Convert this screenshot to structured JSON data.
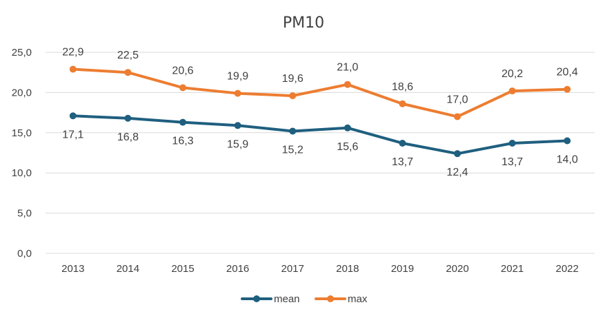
{
  "chart_data": {
    "type": "line",
    "title": "PM10",
    "xlabel": "",
    "ylabel": "",
    "categories": [
      "2013",
      "2014",
      "2015",
      "2016",
      "2017",
      "2018",
      "2019",
      "2020",
      "2021",
      "2022"
    ],
    "y_ticks": [
      "0,0",
      "5,0",
      "10,0",
      "15,0",
      "20,0",
      "25,0"
    ],
    "ylim": [
      0,
      25
    ],
    "grid": true,
    "legend_position": "bottom",
    "series": [
      {
        "name": "mean",
        "color": "#1f5f7f",
        "values": [
          17.1,
          16.8,
          16.3,
          15.9,
          15.2,
          15.6,
          13.7,
          12.4,
          13.7,
          14.0
        ],
        "labels": [
          "17,1",
          "16,8",
          "16,3",
          "15,9",
          "15,2",
          "15,6",
          "13,7",
          "12,4",
          "13,7",
          "14,0"
        ],
        "label_position": "below"
      },
      {
        "name": "max",
        "color": "#ed7d31",
        "values": [
          22.9,
          22.5,
          20.6,
          19.9,
          19.6,
          21.0,
          18.6,
          17.0,
          20.2,
          20.4
        ],
        "labels": [
          "22,9",
          "22,5",
          "20,6",
          "19,9",
          "19,6",
          "21,0",
          "18,6",
          "17,0",
          "20,2",
          "20,4"
        ],
        "label_position": "above"
      }
    ]
  }
}
